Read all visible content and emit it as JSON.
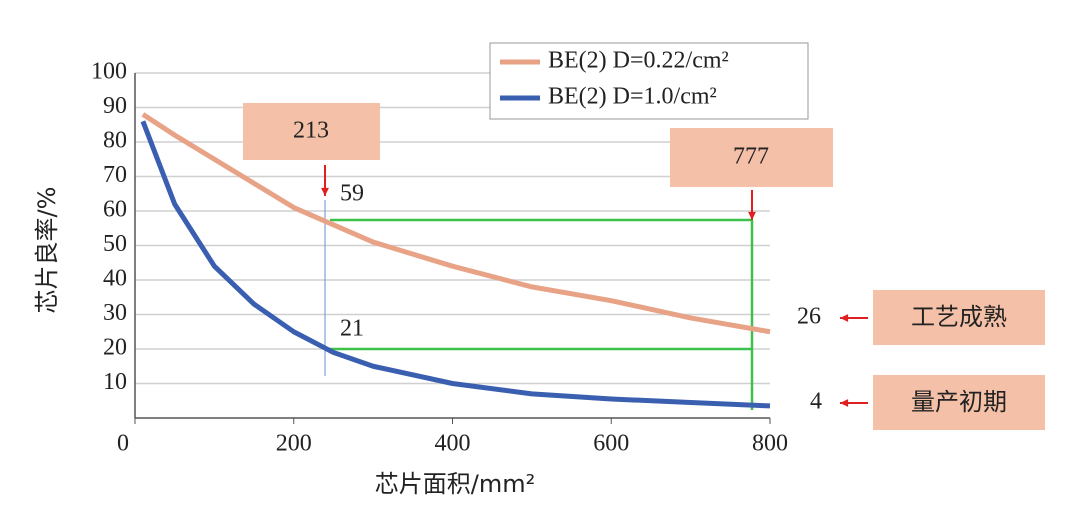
{
  "chart_data": {
    "type": "line",
    "x_label": "芯片面积/mm²",
    "y_label": "芯片良率/%",
    "x": [
      10,
      50,
      100,
      150,
      200,
      250,
      300,
      400,
      500,
      600,
      700,
      800
    ],
    "series": [
      {
        "name": "BE(2) D=0.22/cm²",
        "color": "#e8a387",
        "values": [
          88,
          82,
          75,
          68,
          61,
          56,
          51,
          44,
          38,
          34,
          29,
          25
        ]
      },
      {
        "name": "BE(2) D=1.0/cm²",
        "color": "#3a5fb0",
        "values": [
          86,
          62,
          44,
          33,
          25,
          19,
          15,
          10,
          7,
          5.5,
          4.5,
          3.5
        ]
      }
    ],
    "xlim": [
      0,
      800
    ],
    "xticks": [
      0,
      200,
      400,
      600,
      800
    ],
    "ylim": [
      0,
      100
    ],
    "yticks": [
      10,
      20,
      30,
      40,
      50,
      60,
      70,
      80,
      90,
      100
    ],
    "grid": true,
    "annotations": [
      "213",
      "777",
      "59",
      "21",
      "26",
      "4",
      "工艺成熟",
      "量产初期"
    ]
  }
}
